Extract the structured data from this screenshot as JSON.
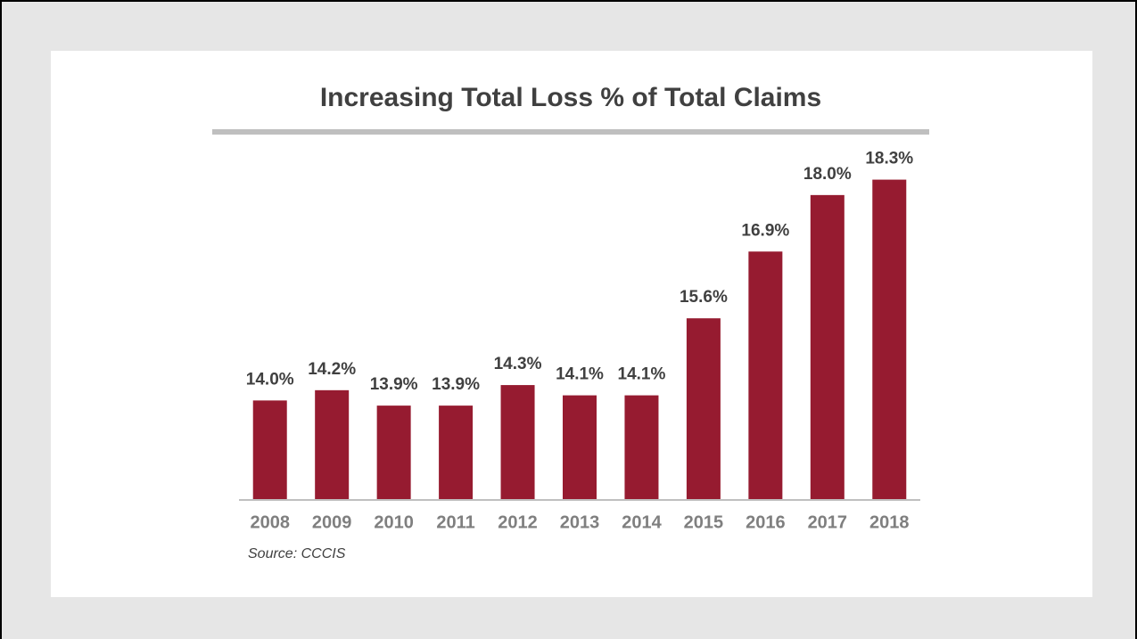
{
  "chart_data": {
    "type": "bar",
    "title": "Increasing Total Loss % of Total Claims",
    "source": "Source: CCCIS",
    "categories": [
      "2008",
      "2009",
      "2010",
      "2011",
      "2012",
      "2013",
      "2014",
      "2015",
      "2016",
      "2017",
      "2018"
    ],
    "values": [
      14.0,
      14.2,
      13.9,
      13.9,
      14.3,
      14.1,
      14.1,
      15.6,
      16.9,
      18.0,
      18.3
    ],
    "value_labels": [
      "14.0%",
      "14.2%",
      "13.9%",
      "13.9%",
      "14.3%",
      "14.1%",
      "14.1%",
      "15.6%",
      "16.9%",
      "18.0%",
      "18.3%"
    ],
    "color": "#961b30",
    "ylim": [
      12.08,
      18.9
    ],
    "grid": false
  }
}
